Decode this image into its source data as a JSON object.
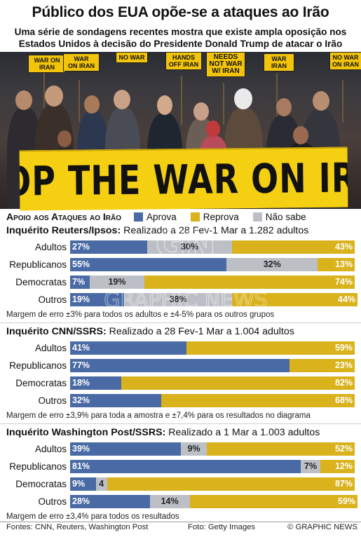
{
  "header": {
    "title": "Público dos EUA opõe-se a ataques ao Irão",
    "subtitle_line1": "Uma série de sondagens recentes mostra que existe ampla oposição nos",
    "subtitle_line2": "Estados Unidos à decisão do Presidente Donald Trump de atacar o Irão"
  },
  "photo": {
    "banner_text": "STOP THE WAR ON IRAN",
    "signs": [
      "WAR ON IRAN",
      "HANDS OFF IRAN",
      "NEEDS NOT WAR W/ IRAN",
      "NO WAR",
      "NO WAR ON IRAN"
    ]
  },
  "legend": {
    "title": "Apoio aos Ataques ao Irão",
    "approve": "Aprova",
    "disapprove": "Reprova",
    "dont_know": "Não sabe"
  },
  "colors": {
    "approve": "#4a6aa5",
    "disapprove": "#d9b21c",
    "dont_know": "#bcc0c6"
  },
  "chart_data": [
    {
      "type": "bar",
      "stacked": true,
      "title": "Inquérito Reuters/Ipsos:",
      "subtitle": "Realizado a 28 Fev-1 Mar a 1.282 adultos",
      "categories": [
        "Adultos",
        "Republicanos",
        "Democratas",
        "Outros"
      ],
      "series": [
        {
          "name": "Aprova",
          "values": [
            27,
            55,
            7,
            19
          ]
        },
        {
          "name": "Não sabe",
          "values": [
            30,
            32,
            19,
            38
          ]
        },
        {
          "name": "Reprova",
          "values": [
            43,
            13,
            74,
            44
          ]
        }
      ],
      "note": "Margem de erro ±3% para todos os adultos e ±4-5% para os outros grupos"
    },
    {
      "type": "bar",
      "stacked": true,
      "title": "Inquérito CNN/SSRS:",
      "subtitle": "Realizado a 28 Fev-1 Mar a 1.004 adultos",
      "categories": [
        "Adultos",
        "Republicanos",
        "Democratas",
        "Outros"
      ],
      "series": [
        {
          "name": "Aprova",
          "values": [
            41,
            77,
            18,
            32
          ]
        },
        {
          "name": "Não sabe",
          "values": [
            0,
            0,
            0,
            0
          ]
        },
        {
          "name": "Reprova",
          "values": [
            59,
            23,
            82,
            68
          ]
        }
      ],
      "note": "Margem de erro ±3,9% para toda a amostra e ±7,4% para os resultados no diagrama"
    },
    {
      "type": "bar",
      "stacked": true,
      "title": "Inquérito Washington Post/SSRS:",
      "subtitle": "Realizado a 1 Mar a 1.003 adultos",
      "categories": [
        "Adultos",
        "Republicanos",
        "Democratas",
        "Outros"
      ],
      "series": [
        {
          "name": "Aprova",
          "values": [
            39,
            81,
            9,
            28
          ]
        },
        {
          "name": "Não sabe",
          "values": [
            9,
            7,
            4,
            14
          ]
        },
        {
          "name": "Reprova",
          "values": [
            52,
            12,
            87,
            59
          ]
        }
      ],
      "labels_no_percent": {
        "Democratas": {
          "Não sabe": "4"
        }
      },
      "note": "Margem de erro ±3,4% para todos os resultados"
    }
  ],
  "footer": {
    "sources": "Fontes: CNN, Reuters, Washington Post",
    "photo_credit": "Foto: Getty Images",
    "copyright": "© GRAPHIC NEWS"
  }
}
